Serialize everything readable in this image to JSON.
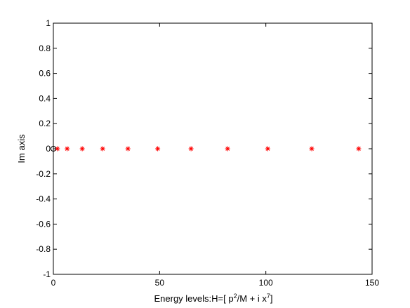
{
  "chart_data": {
    "type": "scatter",
    "title": "",
    "xlabel": {
      "prefix": "Energy levels:H=[ p",
      "sup1": "2",
      "mid": "/M + i x",
      "sup2": "7",
      "suffix": "]"
    },
    "ylabel": "Im axis",
    "xlim": [
      0,
      150
    ],
    "ylim": [
      -1,
      1
    ],
    "xticks": [
      0,
      50,
      100,
      150
    ],
    "xtick_labels": [
      "0",
      "50",
      "100",
      "150"
    ],
    "yticks": [
      1,
      0.8,
      0.6,
      0.4,
      0.2,
      0,
      -0.2,
      -0.4,
      -0.6,
      -0.8,
      -1
    ],
    "ytick_labels": [
      "1",
      "0.8",
      "0.6",
      "0.4",
      "0.2",
      "0",
      "-0.2",
      "-0.4",
      "-0.6",
      "-0.8",
      "-1"
    ],
    "grid": false,
    "series": [
      {
        "marker": "asterisk",
        "color": "#ff0000",
        "x": [
          1.9,
          6.5,
          13.6,
          23.2,
          35.1,
          49.1,
          64.8,
          82.0,
          100.9,
          121.6,
          143.7
        ],
        "y": [
          0,
          0,
          0,
          0,
          0,
          0,
          0,
          0,
          0,
          0,
          0
        ]
      },
      {
        "marker": "circle",
        "color": "#000000",
        "x": [
          0
        ],
        "y": [
          0
        ]
      }
    ]
  }
}
